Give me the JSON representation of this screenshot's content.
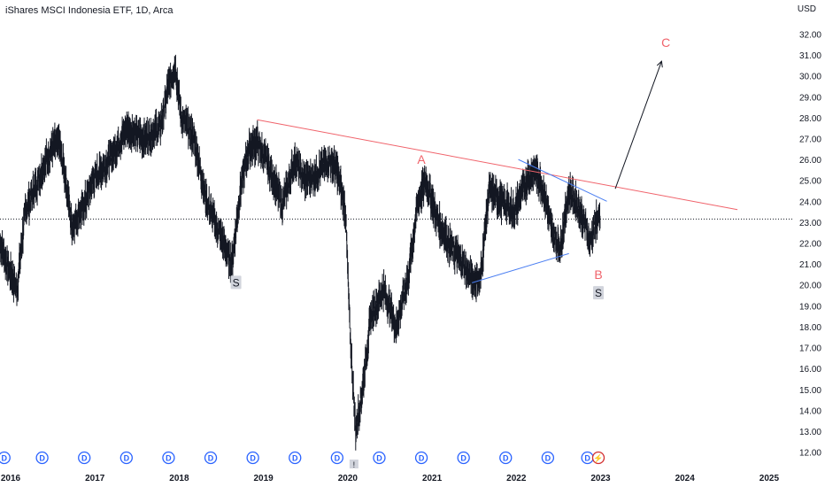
{
  "header": {
    "symbol_title": "iShares MSCI Indonesia ETF, 1D, Arca",
    "currency": "USD"
  },
  "colors": {
    "candles": "#131722",
    "trendline_red": "#f0636b",
    "trendline_blue": "#4a7ef2",
    "wave_label": "#f0636b",
    "dividend_marker": "#2962ff",
    "grid_axis": "#787b86"
  },
  "chart_data": {
    "type": "line",
    "title": "iShares MSCI Indonesia ETF, 1D, Arca",
    "ylabel": "USD",
    "ylim": [
      11.6,
      32.7
    ],
    "xlim": [
      2016.0,
      2025.4
    ],
    "x_ticks": [
      "2016",
      "2017",
      "2018",
      "2019",
      "2020",
      "2021",
      "2022",
      "2023",
      "2024",
      "2025"
    ],
    "y_ticks": [
      "12.00",
      "13.00",
      "14.00",
      "15.00",
      "16.00",
      "17.00",
      "18.00",
      "19.00",
      "20.00",
      "21.00",
      "22.00",
      "23.00",
      "24.00",
      "25.00",
      "26.00",
      "27.00",
      "28.00",
      "29.00",
      "30.00",
      "31.00",
      "32.00"
    ],
    "series": [
      {
        "values_x": [
          2016.0,
          2016.1,
          2016.2,
          2016.3,
          2016.4,
          2016.6,
          2016.7,
          2016.8,
          2016.85,
          2016.95,
          2017.0,
          2017.1,
          2017.3,
          2017.5,
          2017.7,
          2017.9,
          2018.0,
          2018.08,
          2018.15,
          2018.3,
          2018.45,
          2018.6,
          2018.75,
          2018.85,
          2018.95,
          2019.05,
          2019.15,
          2019.25,
          2019.35,
          2019.5,
          2019.6,
          2019.75,
          2019.9,
          2020.0,
          2020.1,
          2020.15,
          2020.22,
          2020.3,
          2020.4,
          2020.55,
          2020.7,
          2020.85,
          2020.95,
          2021.05,
          2021.2,
          2021.35,
          2021.5,
          2021.6,
          2021.7,
          2021.8,
          2021.95,
          2022.1,
          2022.25,
          2022.35,
          2022.45,
          2022.55,
          2022.65,
          2022.75,
          2022.85,
          2022.95,
          2023.0,
          2023.08,
          2023.12
        ],
        "values_y": [
          22.0,
          20.8,
          19.8,
          23.5,
          24.5,
          26.5,
          26.8,
          24.5,
          22.8,
          23.5,
          23.8,
          25.0,
          26.0,
          27.5,
          27.0,
          27.5,
          29.5,
          30.5,
          28.0,
          27.0,
          24.0,
          22.5,
          21.0,
          24.5,
          26.5,
          26.8,
          26.0,
          25.0,
          23.8,
          26.0,
          25.0,
          25.3,
          26.0,
          25.5,
          23.5,
          18.0,
          13.0,
          15.0,
          18.5,
          19.8,
          18.0,
          20.5,
          23.8,
          25.0,
          23.0,
          21.8,
          21.0,
          20.2,
          20.3,
          24.5,
          24.0,
          23.5,
          25.0,
          25.5,
          24.5,
          22.5,
          21.8,
          24.5,
          23.8,
          22.8,
          22.0,
          23.2,
          23.0
        ]
      }
    ],
    "current_price": 23.15,
    "annotations": [
      {
        "text": "A",
        "x": 2021.0,
        "y": 26.0
      },
      {
        "text": "B",
        "x": 2023.1,
        "y": 20.5
      },
      {
        "text": "C",
        "x": 2023.9,
        "y": 31.6
      },
      {
        "text": "S",
        "x": 2018.8,
        "y": 20.1
      },
      {
        "text": "S",
        "x": 2023.1,
        "y": 19.6
      }
    ],
    "trendlines": [
      {
        "color": "red",
        "x": [
          2019.05,
          2024.75
        ],
        "y": [
          27.9,
          23.6
        ]
      },
      {
        "color": "blue",
        "x": [
          2022.15,
          2023.2
        ],
        "y": [
          26.0,
          24.0
        ]
      },
      {
        "color": "blue",
        "x": [
          2021.6,
          2022.75
        ],
        "y": [
          20.1,
          21.5
        ]
      },
      {
        "color": "arrow",
        "x": [
          2023.3,
          2023.85
        ],
        "y": [
          24.6,
          30.7
        ]
      }
    ],
    "dividend_markers": {
      "label": "D",
      "x": [
        2016.05,
        2016.5,
        2017.0,
        2017.5,
        2018.0,
        2018.5,
        2019.0,
        2019.5,
        2020.0,
        2020.5,
        2021.0,
        2021.5,
        2022.0,
        2022.5,
        2022.97
      ],
      "split_marker_x": 2023.1,
      "split_marker_label": "⚡",
      "event_marker_x": 2020.2,
      "event_marker_label": "!"
    }
  }
}
